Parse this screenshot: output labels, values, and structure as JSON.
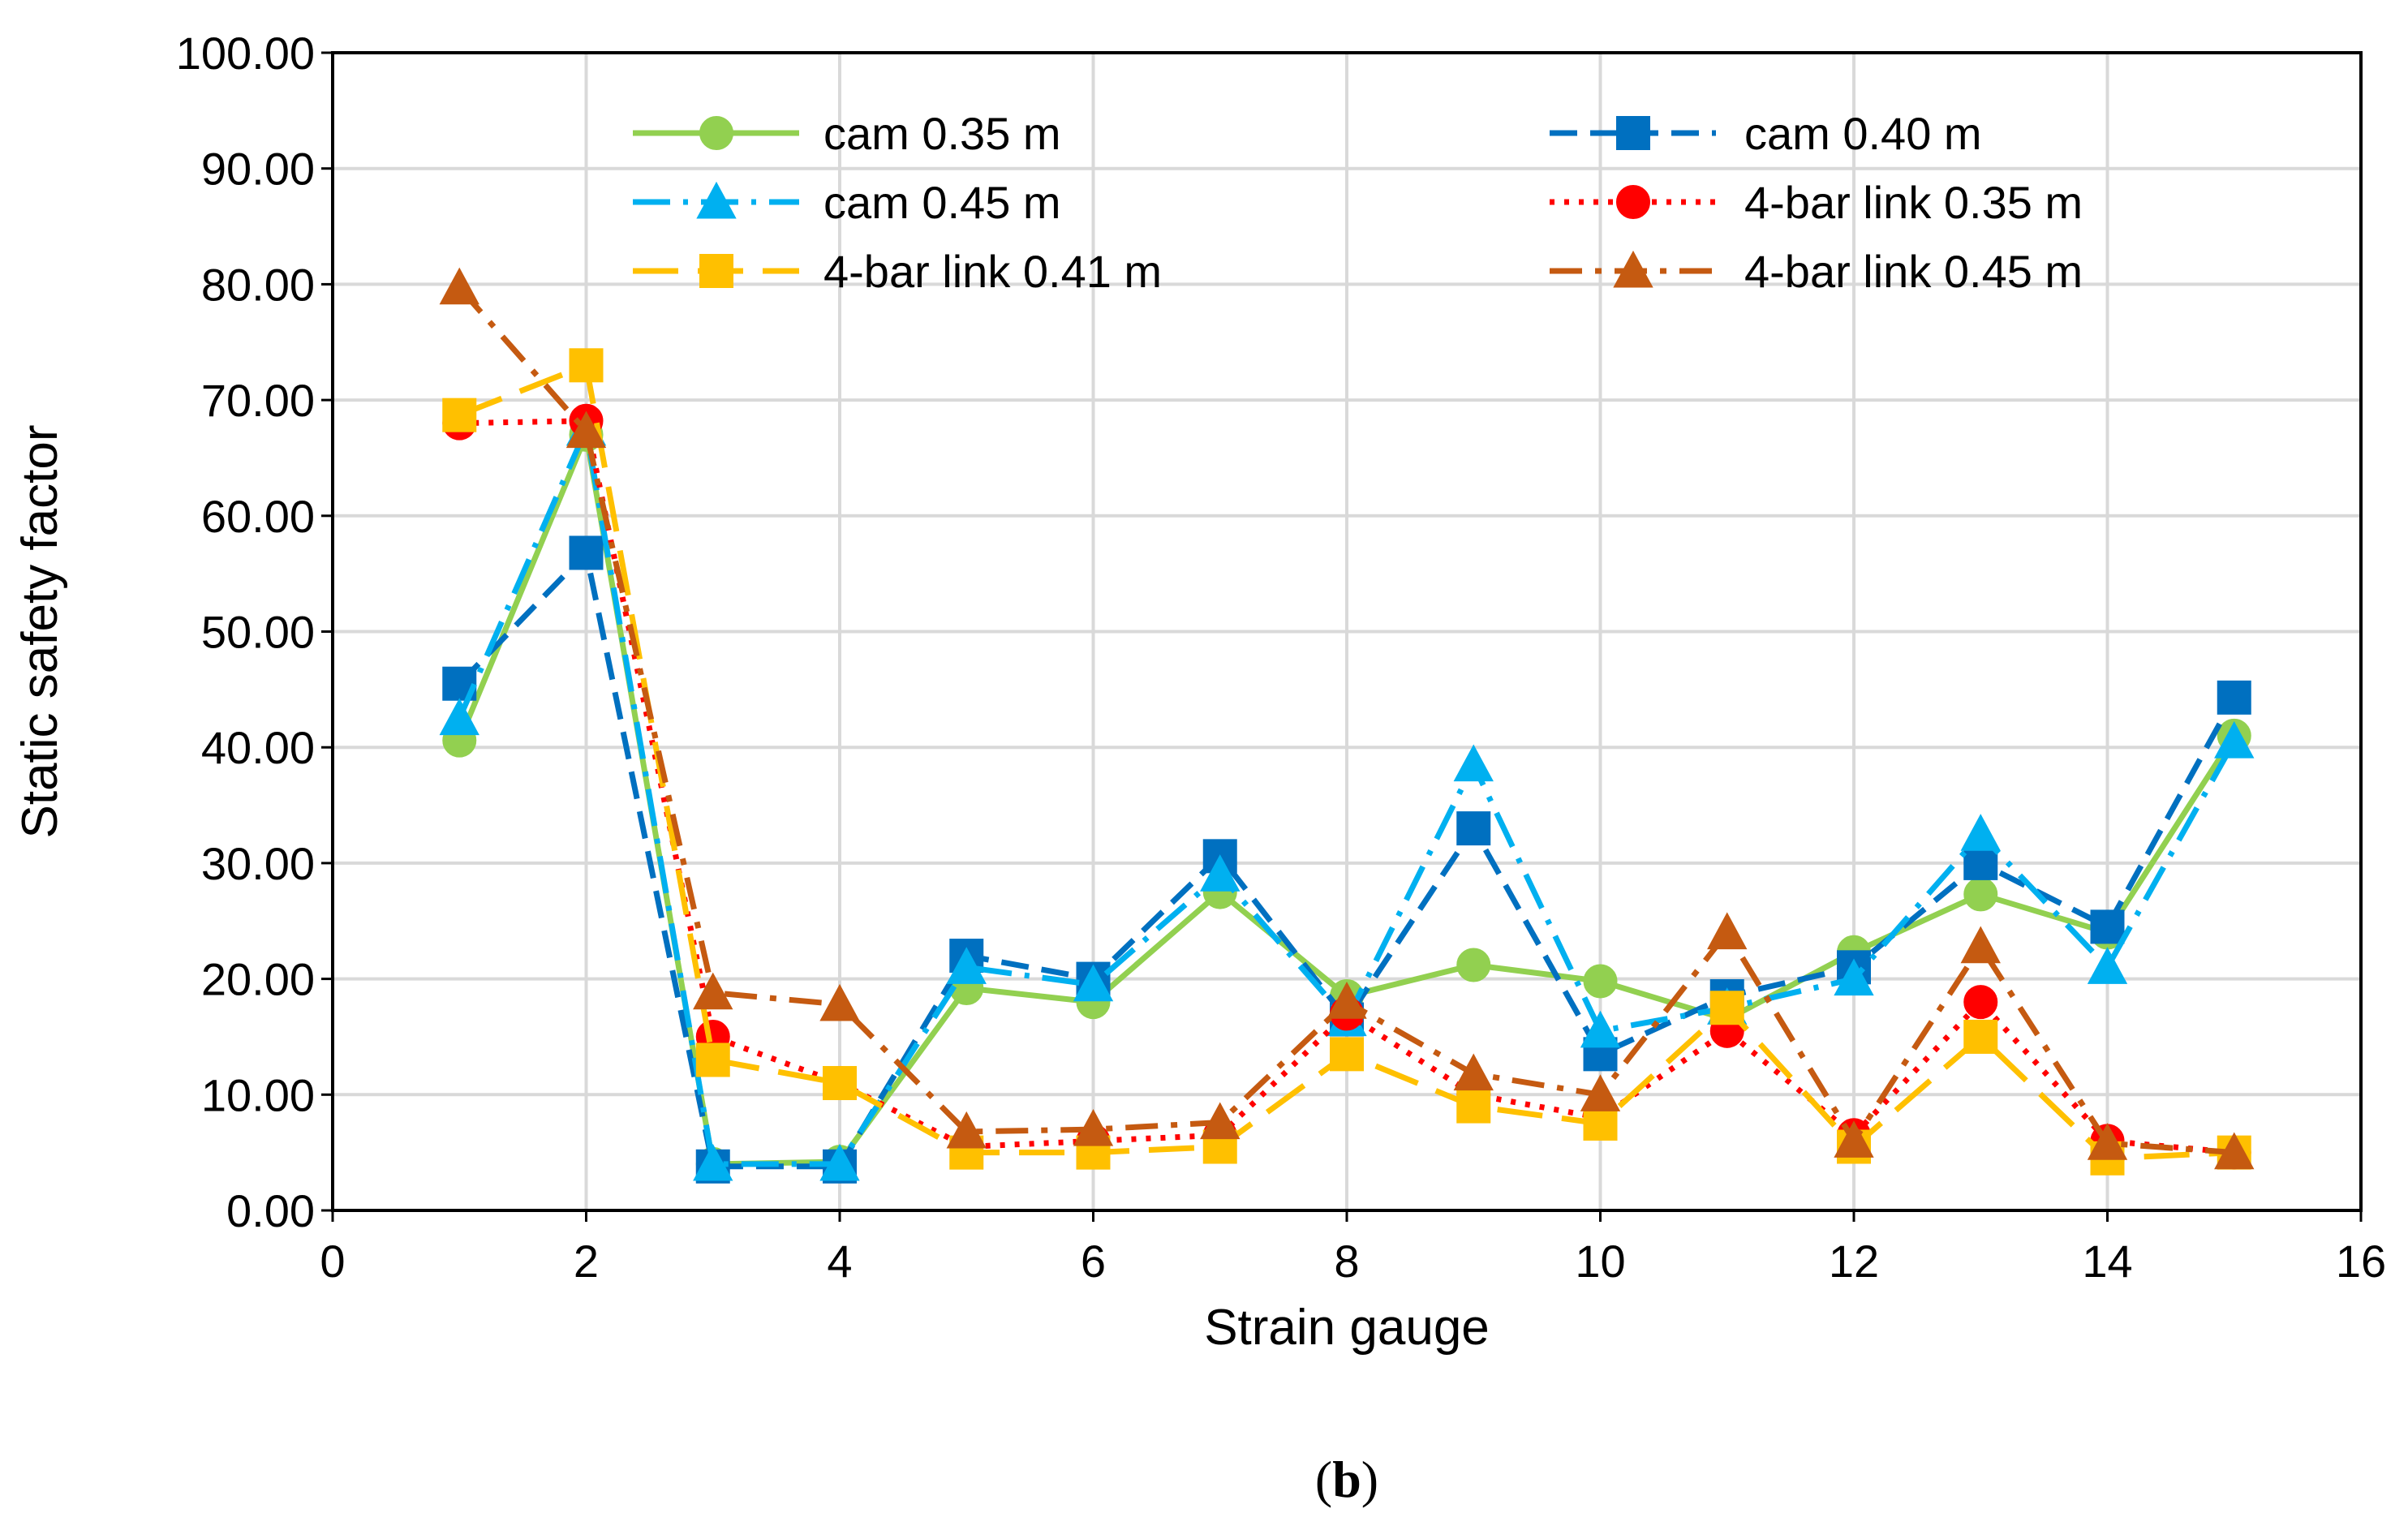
{
  "chart_data": {
    "type": "line",
    "title": "",
    "xlabel": "Strain gauge",
    "ylabel": "Static safety factor",
    "xlim": [
      0,
      16
    ],
    "ylim": [
      0,
      100
    ],
    "x_ticks": [
      "0",
      "2",
      "4",
      "6",
      "8",
      "10",
      "12",
      "14",
      "16"
    ],
    "y_ticks": [
      "0.00",
      "10.00",
      "20.00",
      "30.00",
      "40.00",
      "50.00",
      "60.00",
      "70.00",
      "80.00",
      "90.00",
      "100.00"
    ],
    "grid": true,
    "legend_position": "top, inside plot area",
    "x": [
      1,
      2,
      3,
      4,
      5,
      6,
      7,
      8,
      9,
      10,
      11,
      12,
      13,
      14,
      15
    ],
    "series": [
      {
        "name": "cam 0.35 m",
        "color": "#92D050",
        "dash": "solid",
        "marker": "circle",
        "values": [
          40.6,
          67.0,
          4.0,
          4.2,
          19.2,
          18.0,
          27.5,
          18.5,
          21.2,
          19.8,
          16.5,
          22.3,
          27.3,
          24.0,
          41.0
        ]
      },
      {
        "name": "cam 0.40 m",
        "color": "#0070C0",
        "dash": "dash",
        "marker": "square",
        "values": [
          45.5,
          56.8,
          3.8,
          3.8,
          22.0,
          20.0,
          30.6,
          16.5,
          33.0,
          13.5,
          18.5,
          21.0,
          30.0,
          24.5,
          44.3
        ]
      },
      {
        "name": "cam 0.45 m",
        "color": "#00B0F0",
        "dash": "longdashdot",
        "marker": "triangle",
        "values": [
          42.5,
          67.5,
          4.0,
          4.0,
          21.0,
          19.5,
          29.0,
          16.5,
          38.5,
          15.5,
          17.5,
          20.0,
          32.5,
          21.0,
          40.5
        ]
      },
      {
        "name": "4-bar link 0.35 m",
        "color": "#FF0000",
        "dash": "dot",
        "marker": "circle",
        "values": [
          68.0,
          68.2,
          15.0,
          11.0,
          5.5,
          6.0,
          6.5,
          17.0,
          10.0,
          8.0,
          15.5,
          6.5,
          18.0,
          6.0,
          5.0
        ]
      },
      {
        "name": "4-bar link 0.41 m",
        "color": "#FFC000",
        "dash": "longdash",
        "marker": "square",
        "values": [
          68.7,
          73.0,
          13.0,
          11.0,
          5.0,
          5.0,
          5.5,
          13.5,
          9.0,
          7.5,
          17.5,
          5.5,
          15.0,
          4.5,
          5.0
        ]
      },
      {
        "name": "4-bar link 0.45 m",
        "color": "#C55A11",
        "dash": "dashdot",
        "marker": "triangle",
        "values": [
          79.7,
          67.3,
          18.8,
          17.8,
          6.8,
          7.0,
          7.6,
          18.0,
          11.8,
          10.0,
          24.0,
          6.0,
          22.8,
          5.8,
          5.0
        ]
      }
    ]
  },
  "caption": {
    "open": "(",
    "bold": "b",
    "close": ")"
  }
}
